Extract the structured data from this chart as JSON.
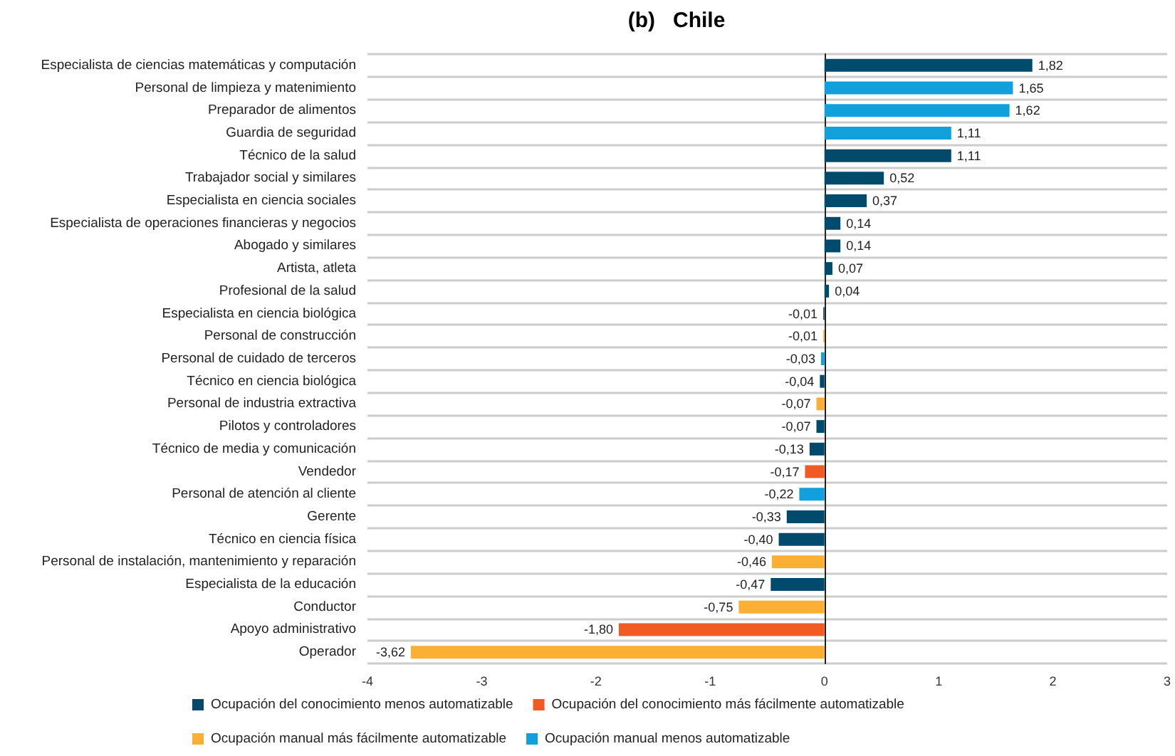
{
  "chart_data": {
    "type": "bar",
    "orientation": "horizontal",
    "title": "(b)   Chile",
    "categories": [
      "Especialista de ciencias matemáticas y computación",
      "Personal de limpieza y matenimiento",
      "Preparador de alimentos",
      "Guardia de seguridad",
      "Técnico de la salud",
      "Trabajador social y similares",
      "Especialista en ciencia sociales",
      "Especialista de operaciones financieras y negocios",
      "Abogado y similares",
      "Artista, atleta",
      "Profesional de la salud",
      "Especialista en ciencia biológica",
      "Personal de construcción",
      "Personal de cuidado de terceros",
      "Técnico en ciencia biológica",
      "Personal de industria extractiva",
      "Pilotos y controladores",
      "Técnico de media y comunicación",
      "Vendedor",
      "Personal de atención al cliente",
      "Gerente",
      "Técnico en ciencia física",
      "Personal de instalación, mantenimiento y reparación",
      "Especialista de la educación",
      "Conductor",
      "Apoyo administrativo",
      "Operador"
    ],
    "series": [
      {
        "name": "Ocupación del conocimiento menos automatizable",
        "color": "#004b6b",
        "values": [
          1.82,
          null,
          null,
          null,
          1.11,
          0.52,
          0.37,
          0.14,
          0.14,
          0.07,
          0.04,
          -0.01,
          null,
          null,
          -0.04,
          null,
          -0.07,
          -0.13,
          null,
          null,
          -0.33,
          -0.4,
          null,
          -0.47,
          null,
          null,
          null
        ]
      },
      {
        "name": "Ocupación del conocimiento más fácilmente automatizable",
        "color": "#f15a22",
        "values": [
          null,
          null,
          null,
          null,
          null,
          null,
          null,
          null,
          null,
          null,
          null,
          null,
          null,
          null,
          null,
          null,
          null,
          null,
          -0.17,
          null,
          null,
          null,
          null,
          null,
          null,
          -1.8,
          null
        ]
      },
      {
        "name": "Ocupación manual más fácilmente automatizable",
        "color": "#fbb034",
        "values": [
          null,
          null,
          null,
          null,
          null,
          null,
          null,
          null,
          null,
          null,
          null,
          null,
          -0.01,
          null,
          null,
          -0.07,
          null,
          null,
          null,
          null,
          null,
          null,
          -0.46,
          null,
          -0.75,
          null,
          -3.62
        ]
      },
      {
        "name": "Ocupación manual menos automatizable",
        "color": "#11a0dc",
        "values": [
          null,
          1.65,
          1.62,
          1.11,
          null,
          null,
          null,
          null,
          null,
          null,
          null,
          null,
          null,
          -0.03,
          null,
          null,
          null,
          null,
          null,
          -0.22,
          null,
          null,
          null,
          null,
          null,
          null,
          null
        ]
      }
    ],
    "value_labels": [
      "1,82",
      "1,65",
      "1,62",
      "1,11",
      "1,11",
      "0,52",
      "0,37",
      "0,14",
      "0,14",
      "0,07",
      "0,04",
      "-0,01",
      "-0,01",
      "-0,03",
      "-0,04",
      "-0,07",
      "-0,07",
      "-0,13",
      "-0,17",
      "-0,22",
      "-0,33",
      "-0,40",
      "-0,46",
      "-0,47",
      "-0,75",
      "-1,80",
      "-3,62"
    ],
    "xlim": [
      -4,
      3
    ],
    "xticks": [
      -4,
      -3,
      -2,
      -1,
      0,
      1,
      2,
      3
    ],
    "grid": "y",
    "legend": "bottom"
  }
}
